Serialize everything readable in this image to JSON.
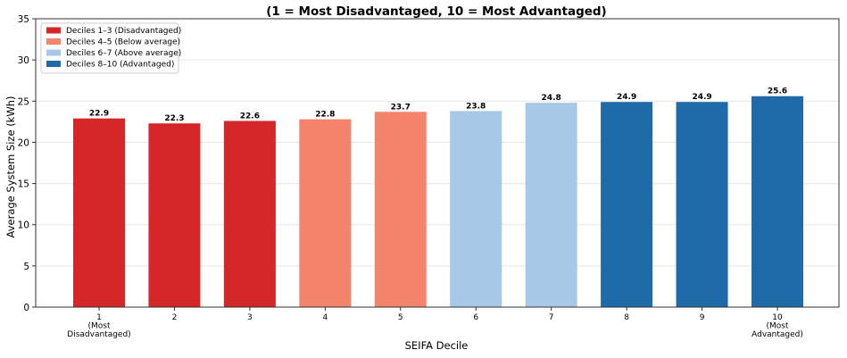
{
  "chart_data": {
    "type": "bar",
    "title": "(1 = Most Disadvantaged, 10 = Most Advantaged)",
    "xlabel": "SEIFA Decile",
    "ylabel": "Average System Size (kWh)",
    "ylim": [
      0,
      35
    ],
    "yticks": [
      0,
      5,
      10,
      15,
      20,
      25,
      30,
      35
    ],
    "grid": "horizontal",
    "legend_position": "top-left",
    "categories": [
      [
        "1",
        "(Most",
        "Disadvantaged)"
      ],
      [
        "2"
      ],
      [
        "3"
      ],
      [
        "4"
      ],
      [
        "5"
      ],
      [
        "6"
      ],
      [
        "7"
      ],
      [
        "8"
      ],
      [
        "9"
      ],
      [
        "10",
        "(Most",
        "Advantaged)"
      ]
    ],
    "values": [
      22.9,
      22.3,
      22.6,
      22.8,
      23.7,
      23.8,
      24.8,
      24.9,
      24.9,
      25.6
    ],
    "data_labels": [
      "22.9",
      "22.3",
      "22.6",
      "22.8",
      "23.7",
      "23.8",
      "24.8",
      "24.9",
      "24.9",
      "25.6"
    ],
    "bar_groups": [
      0,
      0,
      0,
      1,
      1,
      2,
      2,
      3,
      3,
      3
    ],
    "legend": [
      {
        "label": "Deciles 1–3 (Disadvantaged)",
        "color": "#d62728"
      },
      {
        "label": "Deciles 4–5 (Below average)",
        "color": "#f4846a"
      },
      {
        "label": "Deciles 6–7 (Above average)",
        "color": "#a7c8e6"
      },
      {
        "label": "Deciles 8–10 (Advantaged)",
        "color": "#1f6aa8"
      }
    ]
  }
}
